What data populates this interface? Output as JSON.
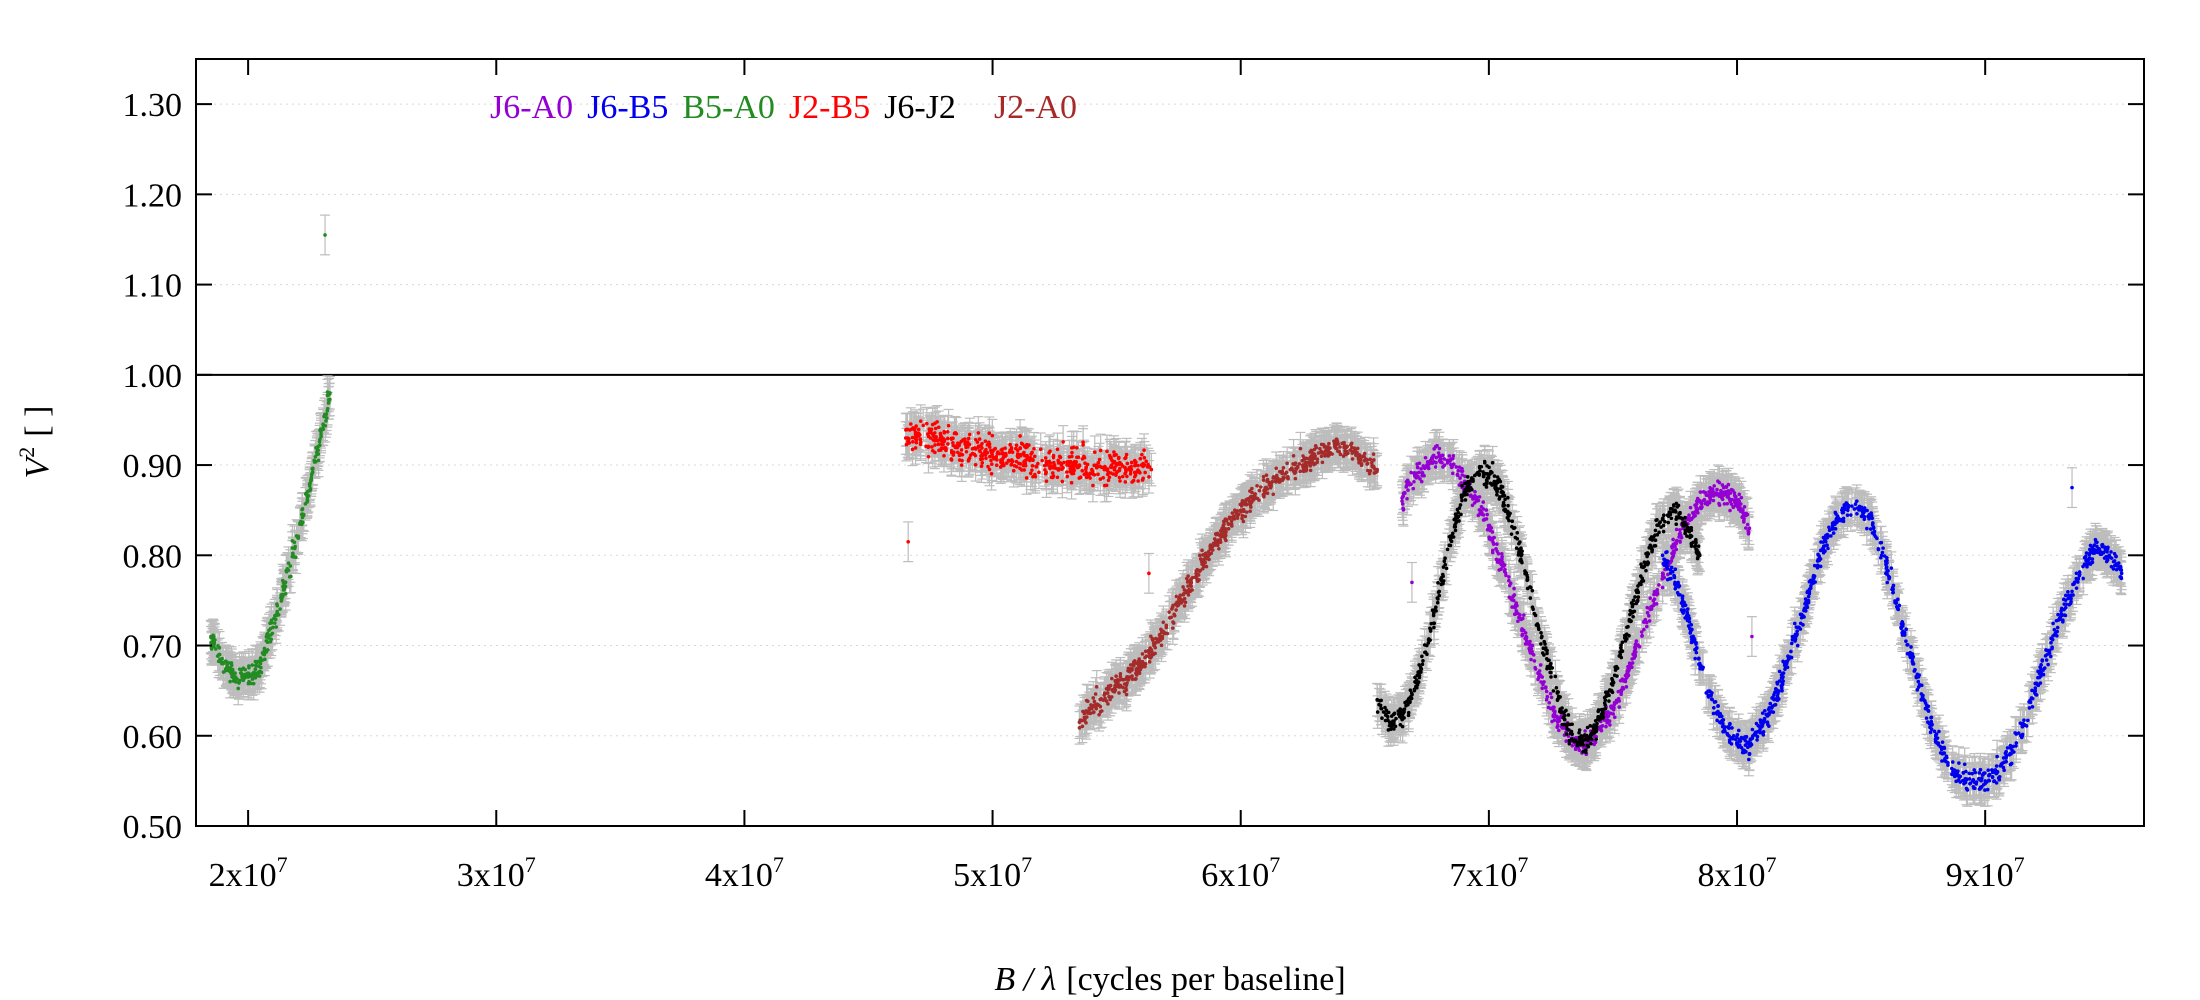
{
  "chart_data": {
    "type": "scatter",
    "title": "",
    "xlabel_main": "B / λ",
    "xlabel_unit": "[cycles per baseline]",
    "ylabel_main": "V",
    "ylabel_sup": "2",
    "ylabel_unit": "[ ]",
    "xlim": [
      17900000,
      96400000
    ],
    "ylim": [
      0.5,
      1.35
    ],
    "x_ticks": [
      {
        "value": 20000000,
        "label": "2x10",
        "exp": "7"
      },
      {
        "value": 30000000,
        "label": "3x10",
        "exp": "7"
      },
      {
        "value": 40000000,
        "label": "4x10",
        "exp": "7"
      },
      {
        "value": 50000000,
        "label": "5x10",
        "exp": "7"
      },
      {
        "value": 60000000,
        "label": "6x10",
        "exp": "7"
      },
      {
        "value": 70000000,
        "label": "7x10",
        "exp": "7"
      },
      {
        "value": 80000000,
        "label": "8x10",
        "exp": "7"
      },
      {
        "value": 90000000,
        "label": "9x10",
        "exp": "7"
      }
    ],
    "y_ticks": [
      {
        "value": 0.5,
        "label": "0.50"
      },
      {
        "value": 0.6,
        "label": "0.60"
      },
      {
        "value": 0.7,
        "label": "0.70"
      },
      {
        "value": 0.8,
        "label": "0.80"
      },
      {
        "value": 0.9,
        "label": "0.90"
      },
      {
        "value": 1.0,
        "label": "1.00"
      },
      {
        "value": 1.1,
        "label": "1.10"
      },
      {
        "value": 1.2,
        "label": "1.20"
      },
      {
        "value": 1.3,
        "label": "1.30"
      }
    ],
    "reference_line": 1.0,
    "grid": "horizontal dotted",
    "legend_position": "top-left",
    "error_bar_color": "#bdbdbd",
    "series": [
      {
        "name": "J6-A0",
        "color": "#9400d3",
        "x": [
          66500000,
          67000000,
          67500000,
          68000000,
          68500000,
          69000000,
          69500000,
          70000000,
          70500000,
          71000000,
          71500000,
          72000000,
          72500000,
          73000000,
          73500000,
          74000000,
          74500000,
          75000000,
          75500000,
          76000000,
          76500000,
          77000000,
          77500000,
          78000000,
          78500000,
          79000000,
          79500000,
          80000000,
          80500000
        ],
        "y": [
          0.86,
          0.89,
          0.9,
          0.91,
          0.9,
          0.88,
          0.86,
          0.83,
          0.79,
          0.75,
          0.71,
          0.67,
          0.63,
          0.61,
          0.59,
          0.59,
          0.61,
          0.63,
          0.66,
          0.7,
          0.74,
          0.78,
          0.81,
          0.84,
          0.86,
          0.87,
          0.87,
          0.86,
          0.83
        ]
      },
      {
        "name": "J6-B5",
        "color": "#0000ee",
        "x": [
          77000000,
          77500000,
          78000000,
          78500000,
          79000000,
          79500000,
          80000000,
          80500000,
          81000000,
          81500000,
          82000000,
          82500000,
          83000000,
          83500000,
          84000000,
          84500000,
          85000000,
          85500000,
          86000000,
          86500000,
          87000000,
          87500000,
          88000000,
          88500000,
          89000000,
          89500000,
          90000000,
          90500000,
          91000000,
          91500000,
          92000000,
          92500000,
          93000000,
          93500000,
          94000000,
          94500000,
          95000000,
          95500000
        ],
        "y": [
          0.8,
          0.77,
          0.73,
          0.68,
          0.64,
          0.61,
          0.59,
          0.59,
          0.61,
          0.64,
          0.68,
          0.72,
          0.77,
          0.81,
          0.84,
          0.855,
          0.85,
          0.83,
          0.79,
          0.74,
          0.69,
          0.64,
          0.6,
          0.57,
          0.555,
          0.55,
          0.55,
          0.56,
          0.58,
          0.61,
          0.65,
          0.69,
          0.73,
          0.76,
          0.79,
          0.81,
          0.8,
          0.78
        ]
      },
      {
        "name": "B5-A0",
        "color": "#228b22",
        "x": [
          18500000,
          19000000,
          19500000,
          20000000,
          20500000,
          21000000,
          21500000,
          22000000,
          22500000,
          23000000,
          23300000
        ],
        "y": [
          0.71,
          0.68,
          0.665,
          0.665,
          0.68,
          0.72,
          0.77,
          0.82,
          0.88,
          0.94,
          0.98
        ]
      },
      {
        "name": "J2-B5",
        "color": "#ff0000",
        "x": [
          46500000,
          47000000,
          47500000,
          48000000,
          48500000,
          49000000,
          49500000,
          50000000,
          50500000,
          51000000,
          51500000,
          52000000,
          52500000,
          53000000,
          53500000,
          54000000,
          54500000,
          55000000,
          55500000,
          56000000,
          56400000
        ],
        "y": [
          0.93,
          0.935,
          0.93,
          0.925,
          0.92,
          0.92,
          0.915,
          0.915,
          0.91,
          0.91,
          0.905,
          0.905,
          0.9,
          0.9,
          0.9,
          0.895,
          0.895,
          0.9,
          0.895,
          0.9,
          0.895
        ]
      },
      {
        "name": "J6-J2",
        "color": "#000000",
        "x": [
          65500000,
          66000000,
          66500000,
          67000000,
          67500000,
          68000000,
          68500000,
          69000000,
          69500000,
          70000000,
          70500000,
          71000000,
          71500000,
          72000000,
          72500000,
          73000000,
          73500000,
          74000000,
          74500000,
          75000000,
          75500000,
          76000000,
          76500000,
          77000000,
          77500000,
          78000000,
          78500000
        ],
        "y": [
          0.64,
          0.615,
          0.62,
          0.65,
          0.7,
          0.76,
          0.82,
          0.87,
          0.89,
          0.89,
          0.87,
          0.83,
          0.78,
          0.72,
          0.67,
          0.62,
          0.595,
          0.595,
          0.62,
          0.66,
          0.71,
          0.76,
          0.81,
          0.84,
          0.85,
          0.83,
          0.8
        ]
      },
      {
        "name": "J2-A0",
        "color": "#a52a2a",
        "x": [
          53500000,
          54000000,
          54500000,
          55000000,
          55500000,
          56000000,
          56500000,
          57000000,
          57500000,
          58000000,
          58500000,
          59000000,
          59500000,
          60000000,
          60500000,
          61000000,
          61500000,
          62000000,
          62500000,
          63000000,
          63500000,
          64000000,
          64500000,
          65000000,
          65500000
        ],
        "y": [
          0.615,
          0.63,
          0.645,
          0.655,
          0.665,
          0.68,
          0.7,
          0.72,
          0.745,
          0.77,
          0.795,
          0.815,
          0.835,
          0.85,
          0.865,
          0.875,
          0.885,
          0.895,
          0.9,
          0.91,
          0.915,
          0.92,
          0.915,
          0.905,
          0.895
        ]
      }
    ],
    "outliers": [
      {
        "series": "B5-A0",
        "x": 23100000,
        "y": 1.155
      },
      {
        "series": "J2-B5",
        "x": 46600000,
        "y": 0.815
      },
      {
        "series": "J2-B5",
        "x": 56300000,
        "y": 0.78
      },
      {
        "series": "J6-A0",
        "x": 66900000,
        "y": 0.77
      },
      {
        "series": "J6-A0",
        "x": 80600000,
        "y": 0.71
      },
      {
        "series": "J6-B5",
        "x": 93500000,
        "y": 0.875
      }
    ]
  }
}
